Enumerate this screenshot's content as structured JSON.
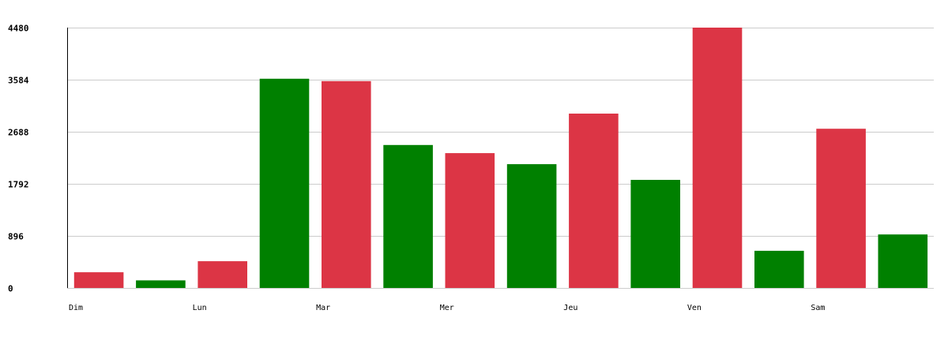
{
  "chart_data": {
    "type": "bar",
    "categories": [
      "Dim",
      "Lun",
      "Mar",
      "Mer",
      "Jeu",
      "Ven",
      "Sam"
    ],
    "series": [
      {
        "color": "#dc3545",
        "values": [
          270,
          460,
          3560,
          2320,
          3000,
          4480,
          2740
        ]
      },
      {
        "color": "#008000",
        "values": [
          130,
          3600,
          2460,
          2130,
          1860,
          640,
          920
        ]
      }
    ],
    "y_ticks": [
      "0",
      "896",
      "1792",
      "2688",
      "3584",
      "4480"
    ],
    "ylim": [
      0,
      4480
    ],
    "grid": true,
    "legend": "none",
    "title": "",
    "xlabel": "",
    "ylabel": ""
  }
}
